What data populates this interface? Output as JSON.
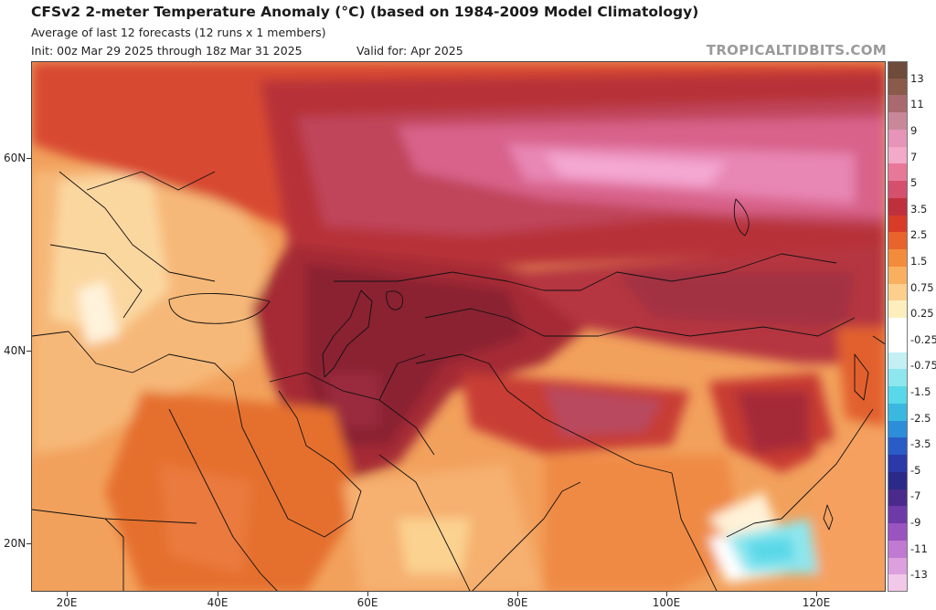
{
  "header": {
    "title": "CFSv2 2-meter Temperature Anomaly (°C) (based on 1984-2009 Model Climatology)",
    "subtitle": "Average of last 12 forecasts (12 runs x 1 members)",
    "init": "Init: 00z Mar 29 2025 through 18z Mar 31 2025",
    "valid": "Valid for: Apr 2025",
    "credit": "TROPICALTIDBITS.COM"
  },
  "map": {
    "lat_labels": [
      "60N",
      "40N",
      "20N"
    ],
    "lon_labels": [
      "20E",
      "40E",
      "60E",
      "80E",
      "100E",
      "120E"
    ]
  },
  "colorbar": {
    "labels": [
      "13",
      "11",
      "9",
      "7",
      "5",
      "3.5",
      "2.5",
      "1.5",
      "0.75",
      "0.25",
      "-0.25",
      "-0.75",
      "-1.5",
      "-2.5",
      "-3.5",
      "-5",
      "-7",
      "-9",
      "-11",
      "-13"
    ],
    "colors": [
      "#6e4b3a",
      "#8a5a4a",
      "#a86a6e",
      "#c8889a",
      "#e694b8",
      "#f2aac8",
      "#e87898",
      "#d4506c",
      "#c0303c",
      "#d83c28",
      "#e8642c",
      "#f28c3c",
      "#f8b060",
      "#fcd08c",
      "#fdeebe",
      "#ffffff",
      "#ffffff",
      "#c4f0f4",
      "#8ee6ee",
      "#58d8e8",
      "#3ab8e0",
      "#2c8ed8",
      "#2a5cc8",
      "#2a3aa8",
      "#2c2a88",
      "#4a2a8a",
      "#6e3aa8",
      "#9a54c0",
      "#c07ad2",
      "#dca0de",
      "#f2c8e8"
    ]
  }
}
